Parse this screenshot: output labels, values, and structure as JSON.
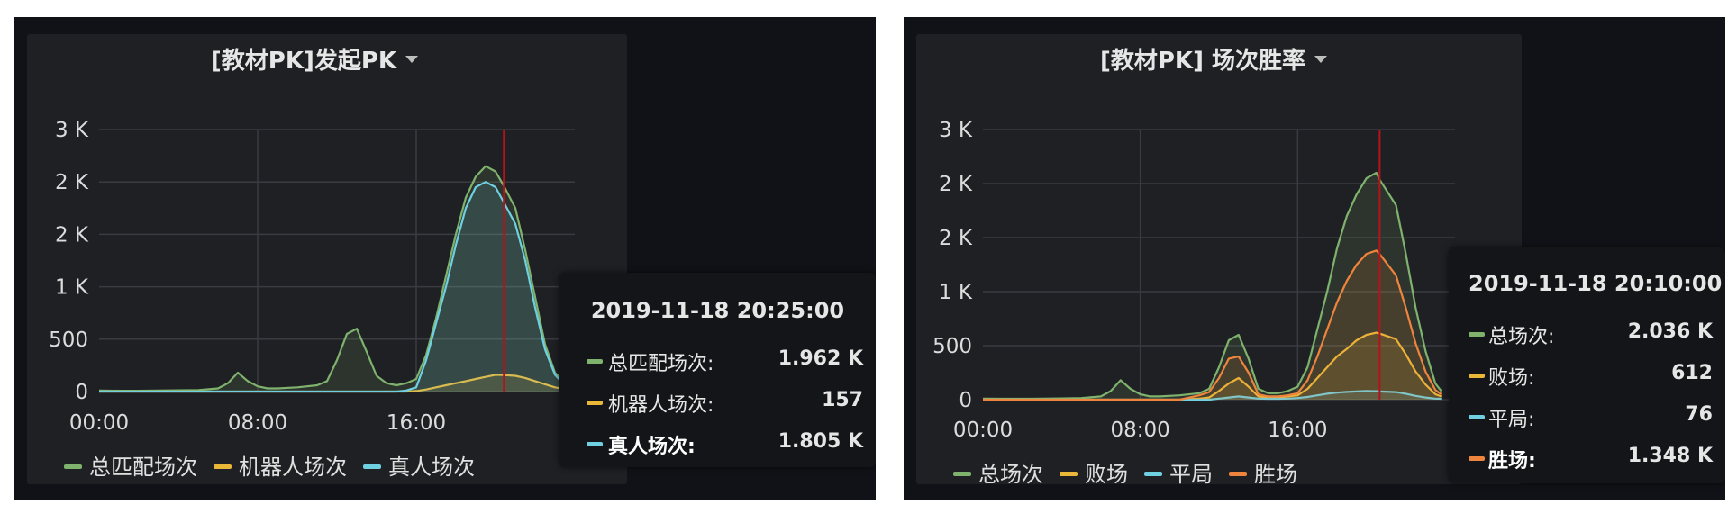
{
  "colors": {
    "green": "#7eb26d",
    "yellow": "#eab839",
    "cyan": "#6ed0e0",
    "orange": "#ef843c",
    "crosshair": "#b3141b",
    "grid": "#3a3b40"
  },
  "panels": [
    {
      "title": "[教材PK]发起PK",
      "tooltip": {
        "time": "2019-11-18 20:25:00",
        "rows": [
          {
            "name": "总匹配场次:",
            "value": "1.962 K",
            "color": "#7eb26d",
            "highlight": false
          },
          {
            "name": "机器人场次:",
            "value": "157",
            "color": "#eab839",
            "highlight": false
          },
          {
            "name": "真人场次:",
            "value": "1.805 K",
            "color": "#6ed0e0",
            "highlight": true
          }
        ]
      },
      "legend": [
        {
          "label": "总匹配场次",
          "color": "#7eb26d"
        },
        {
          "label": "机器人场次",
          "color": "#eab839"
        },
        {
          "label": "真人场次",
          "color": "#6ed0e0"
        }
      ]
    },
    {
      "title": "[教材PK] 场次胜率",
      "tooltip": {
        "time": "2019-11-18 20:10:00",
        "rows": [
          {
            "name": "总场次:",
            "value": "2.036 K",
            "color": "#7eb26d",
            "highlight": false
          },
          {
            "name": "败场:",
            "value": "612",
            "color": "#eab839",
            "highlight": false
          },
          {
            "name": "平局:",
            "value": "76",
            "color": "#6ed0e0",
            "highlight": false
          },
          {
            "name": "胜场:",
            "value": "1.348 K",
            "color": "#ef843c",
            "highlight": true
          }
        ]
      },
      "legend": [
        {
          "label": "总场次",
          "color": "#7eb26d"
        },
        {
          "label": "败场",
          "color": "#eab839"
        },
        {
          "label": "平局",
          "color": "#6ed0e0"
        },
        {
          "label": "胜场",
          "color": "#ef843c"
        }
      ]
    }
  ],
  "chart_data": [
    {
      "type": "area",
      "title": "[教材PK]发起PK",
      "ylim": [
        0,
        2500
      ],
      "yticks": [
        0,
        500,
        1000,
        1500,
        2000,
        2500
      ],
      "ytick_labels": [
        "0",
        "500",
        "1 K",
        "2 K",
        "2 K",
        "3 K"
      ],
      "xlim": [
        0,
        24
      ],
      "xticks": [
        0,
        8,
        16
      ],
      "xtick_labels": [
        "00:00",
        "08:00",
        "16:00"
      ],
      "crosshair_x": 20.42,
      "x": [
        0,
        1,
        2,
        3,
        4,
        5,
        6,
        6.5,
        7,
        7.5,
        8,
        8.5,
        9,
        10,
        11,
        11.5,
        12,
        12.5,
        13,
        13.5,
        14,
        14.5,
        15,
        15.5,
        16,
        16.5,
        17,
        17.5,
        18,
        18.5,
        19,
        19.5,
        20,
        20.42,
        21,
        21.5,
        22,
        22.5,
        23,
        23.3
      ],
      "series": [
        {
          "name": "总匹配场次",
          "color": "#7eb26d",
          "values": [
            10,
            8,
            8,
            10,
            12,
            15,
            30,
            80,
            180,
            100,
            50,
            30,
            30,
            40,
            60,
            100,
            300,
            550,
            600,
            380,
            150,
            80,
            60,
            80,
            120,
            350,
            700,
            1100,
            1500,
            1850,
            2050,
            2150,
            2100,
            1962,
            1750,
            1350,
            900,
            450,
            180,
            120
          ]
        },
        {
          "name": "机器人场次",
          "color": "#eab839",
          "values": [
            0,
            0,
            0,
            0,
            0,
            0,
            0,
            0,
            0,
            0,
            0,
            0,
            0,
            0,
            0,
            0,
            0,
            0,
            0,
            0,
            0,
            0,
            0,
            0,
            5,
            20,
            40,
            60,
            80,
            100,
            120,
            140,
            160,
            157,
            150,
            130,
            100,
            70,
            40,
            30
          ]
        },
        {
          "name": "真人场次",
          "color": "#6ed0e0",
          "values": [
            0,
            0,
            0,
            0,
            0,
            0,
            0,
            0,
            0,
            0,
            0,
            0,
            0,
            0,
            0,
            0,
            0,
            0,
            0,
            0,
            0,
            0,
            0,
            10,
            40,
            300,
            650,
            1000,
            1400,
            1750,
            1950,
            2000,
            1950,
            1805,
            1600,
            1250,
            800,
            400,
            160,
            100
          ]
        }
      ]
    },
    {
      "type": "area",
      "title": "[教材PK] 场次胜率",
      "ylim": [
        0,
        2500
      ],
      "yticks": [
        0,
        500,
        1000,
        1500,
        2000,
        2500
      ],
      "ytick_labels": [
        "0",
        "500",
        "1 K",
        "2 K",
        "2 K",
        "3 K"
      ],
      "xlim": [
        0,
        24
      ],
      "xticks": [
        0,
        8,
        16
      ],
      "xtick_labels": [
        "00:00",
        "08:00",
        "16:00"
      ],
      "crosshair_x": 20.17,
      "x": [
        0,
        1,
        2,
        3,
        4,
        5,
        6,
        6.5,
        7,
        7.5,
        8,
        8.5,
        9,
        10,
        11,
        11.5,
        12,
        12.5,
        13,
        13.5,
        14,
        14.5,
        15,
        15.5,
        16,
        16.5,
        17,
        17.5,
        18,
        18.5,
        19,
        19.5,
        20,
        20.17,
        21,
        21.5,
        22,
        22.5,
        23,
        23.3
      ],
      "series": [
        {
          "name": "总场次",
          "color": "#7eb26d",
          "values": [
            10,
            8,
            8,
            10,
            12,
            15,
            30,
            80,
            180,
            100,
            50,
            30,
            30,
            40,
            60,
            100,
            300,
            550,
            600,
            380,
            100,
            60,
            60,
            80,
            120,
            300,
            650,
            1000,
            1400,
            1700,
            1900,
            2050,
            2100,
            2036,
            1800,
            1350,
            850,
            450,
            150,
            80
          ]
        },
        {
          "name": "败场",
          "color": "#eab839",
          "values": [
            0,
            0,
            0,
            0,
            0,
            0,
            0,
            0,
            0,
            0,
            0,
            0,
            0,
            0,
            10,
            20,
            80,
            150,
            200,
            120,
            30,
            20,
            20,
            30,
            40,
            100,
            200,
            300,
            400,
            470,
            550,
            600,
            620,
            612,
            560,
            420,
            260,
            140,
            50,
            30
          ]
        },
        {
          "name": "平局",
          "color": "#6ed0e0",
          "values": [
            0,
            0,
            0,
            0,
            0,
            0,
            0,
            0,
            0,
            0,
            0,
            0,
            0,
            0,
            0,
            0,
            10,
            20,
            30,
            20,
            10,
            8,
            8,
            10,
            15,
            25,
            40,
            55,
            65,
            72,
            76,
            80,
            78,
            76,
            70,
            55,
            35,
            20,
            10,
            8
          ]
        },
        {
          "name": "胜场",
          "color": "#ef843c",
          "values": [
            0,
            0,
            0,
            0,
            0,
            0,
            0,
            0,
            0,
            0,
            0,
            0,
            0,
            0,
            40,
            70,
            200,
            380,
            400,
            250,
            50,
            30,
            30,
            40,
            60,
            180,
            400,
            650,
            900,
            1100,
            1250,
            1350,
            1380,
            1348,
            1150,
            850,
            520,
            260,
            90,
            50
          ]
        }
      ]
    }
  ]
}
